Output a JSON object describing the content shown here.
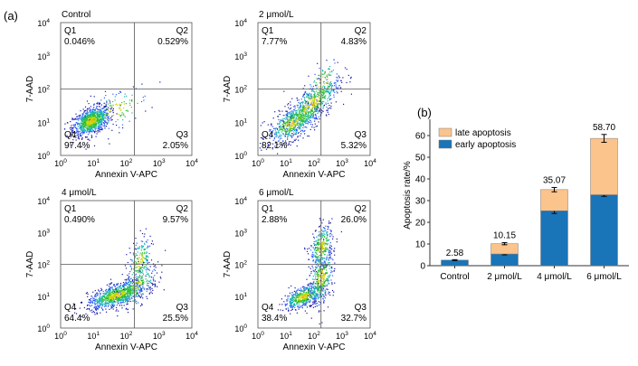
{
  "panel_a": {
    "label": "(a)",
    "x_axis_label": "Annexin V-APC",
    "y_axis_label": "7-AAD",
    "ticks": [
      "10",
      "10",
      "10",
      "10",
      "10"
    ],
    "exponents": [
      "0",
      "1",
      "2",
      "3",
      "4"
    ],
    "quadrant_labels": [
      "Q1",
      "Q2",
      "Q3",
      "Q4"
    ],
    "plots": [
      {
        "title": "Control",
        "quadrants": {
          "Q1": "0.046%",
          "Q2": "0.529%",
          "Q3": "2.05%",
          "Q4": "97.4%"
        }
      },
      {
        "title": "2 μmol/L",
        "quadrants": {
          "Q1": "7.77%",
          "Q2": "4.83%",
          "Q3": "5.32%",
          "Q4": "82.1%"
        }
      },
      {
        "title": "4 μmol/L",
        "quadrants": {
          "Q1": "0.490%",
          "Q2": "9.57%",
          "Q3": "25.5%",
          "Q4": "64.4%"
        }
      },
      {
        "title": "6 μmol/L",
        "quadrants": {
          "Q1": "2.88%",
          "Q2": "26.0%",
          "Q3": "32.7%",
          "Q4": "38.4%"
        }
      }
    ],
    "colors": {
      "frame": "#555555",
      "density": [
        "#1a1aa6",
        "#2e5cff",
        "#19b3b3",
        "#2fbf2f",
        "#c8d400",
        "#ffb000"
      ]
    }
  },
  "chart_data": {
    "type": "bar",
    "label": "(b)",
    "stacked": true,
    "categories": [
      "Control",
      "2 μmol/L",
      "4 μmol/L",
      "6 μmol/L"
    ],
    "series": [
      {
        "name": "early apoptosis",
        "color": "#1a74b8",
        "values": [
          2.58,
          5.4,
          25.3,
          32.7
        ],
        "errors": [
          0.2,
          0.4,
          1.2,
          0.7
        ]
      },
      {
        "name": "late apoptosis",
        "color": "#fbc48c",
        "values": [
          0.0,
          4.75,
          9.77,
          26.0
        ],
        "errors": [
          0,
          0.5,
          1.0,
          1.8
        ]
      }
    ],
    "totals": [
      "2.58",
      "10.15",
      "35.07",
      "58.70"
    ],
    "ylabel": "Apoptosis rate/%",
    "xlabel": "",
    "ylim": [
      0,
      65
    ],
    "yticks": [
      "0",
      "10",
      "20",
      "30",
      "40",
      "50",
      "60"
    ],
    "legend_position": "top-left",
    "grid": false
  }
}
